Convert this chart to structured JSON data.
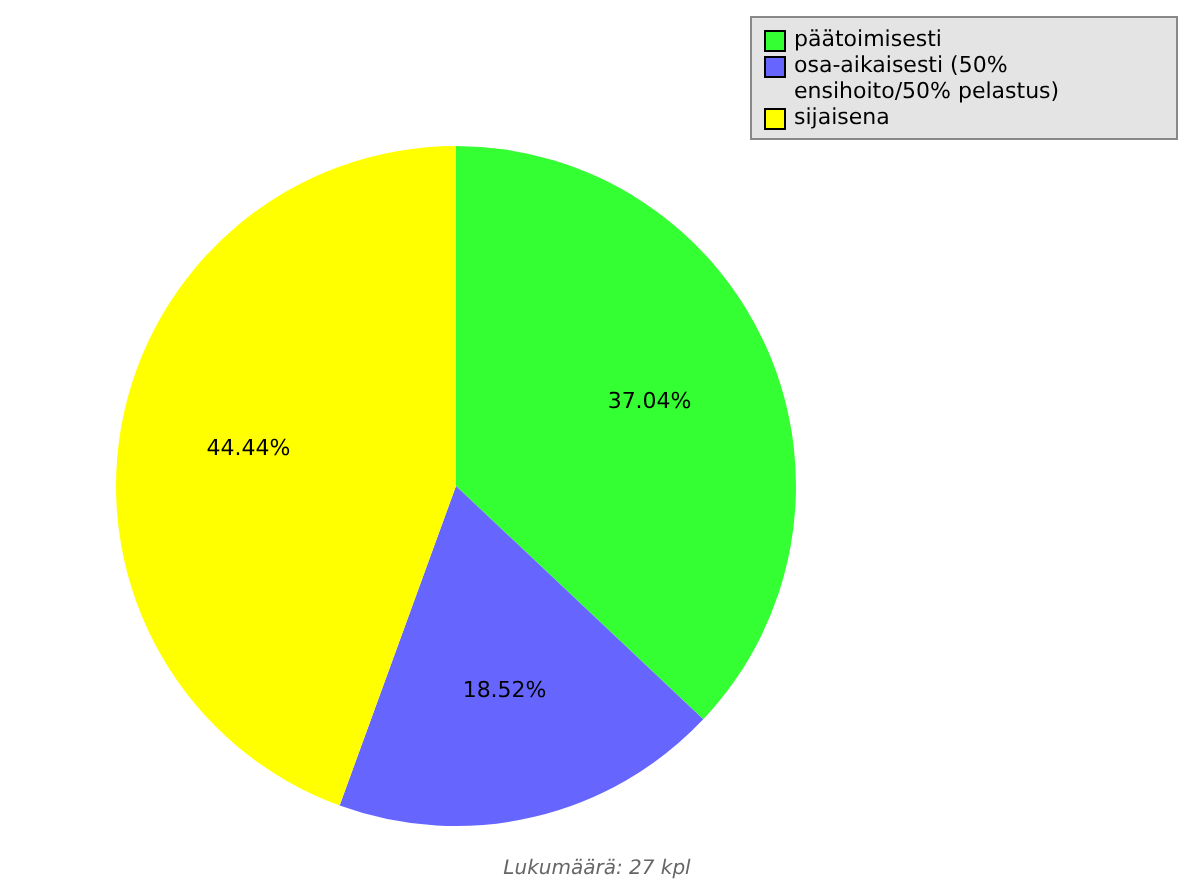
{
  "chart_data": {
    "type": "pie",
    "categories": [
      "päätoimisesti",
      "osa-aikaisesti (50% ensihoito/50% pelastus)",
      "sijaisena"
    ],
    "values": [
      37.04,
      18.52,
      44.44
    ],
    "colors": [
      "#33ff33",
      "#6666ff",
      "#ffff00"
    ],
    "value_labels": [
      "37.04%",
      "18.52%",
      "44.44%"
    ],
    "legend": "top right",
    "annotations": [
      "Lukumäärä: 27 kpl"
    ]
  }
}
